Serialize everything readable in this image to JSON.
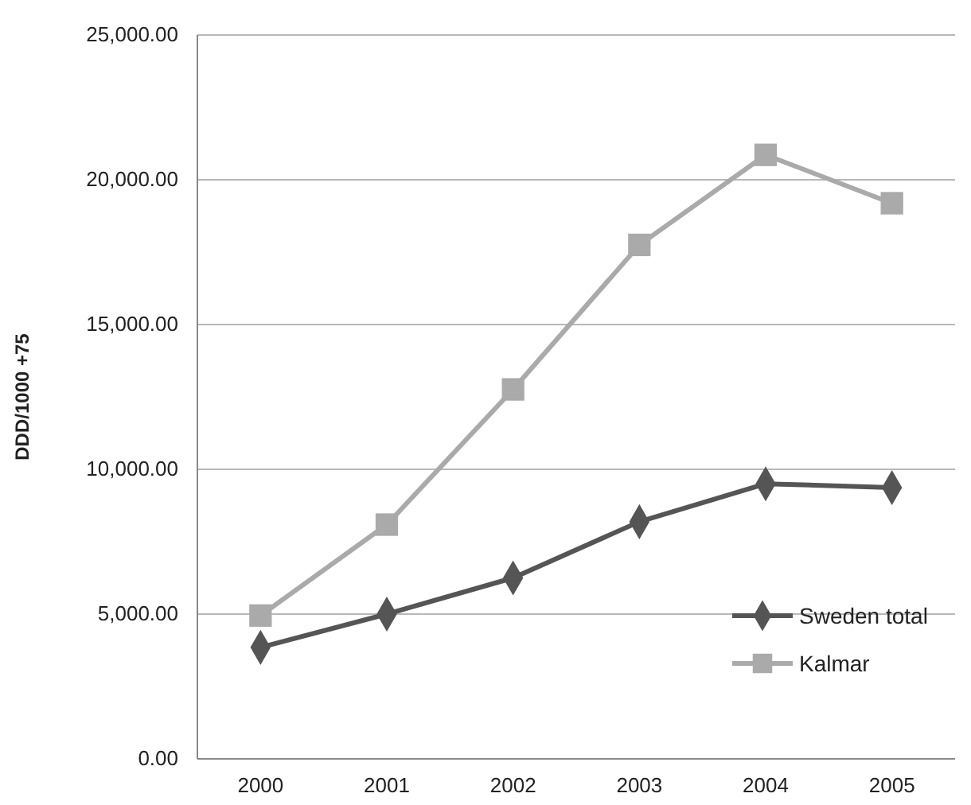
{
  "chart_data": {
    "type": "line",
    "ylabel": "DDD/1000 +75",
    "categories": [
      "2000",
      "2001",
      "2002",
      "2003",
      "2004",
      "2005"
    ],
    "series": [
      {
        "name": "Sweden total",
        "color": "#555555",
        "marker": "diamond",
        "values": [
          3850,
          5000,
          6250,
          8190,
          9500,
          9370
        ]
      },
      {
        "name": "Kalmar",
        "color": "#aaaaaa",
        "marker": "square",
        "values": [
          4950,
          8090,
          12760,
          17750,
          20860,
          19190
        ]
      }
    ],
    "ylim": [
      0,
      25000
    ],
    "yticks": [
      {
        "value": 0,
        "label": "0.00"
      },
      {
        "value": 5000,
        "label": "5,000.00"
      },
      {
        "value": 10000,
        "label": "10,000.00"
      },
      {
        "value": 15000,
        "label": "15,000.00"
      },
      {
        "value": 20000,
        "label": "20,000.00"
      },
      {
        "value": 25000,
        "label": "25,000.00"
      }
    ],
    "grid": "y",
    "legend": "bottom right",
    "line_style": "solid"
  }
}
